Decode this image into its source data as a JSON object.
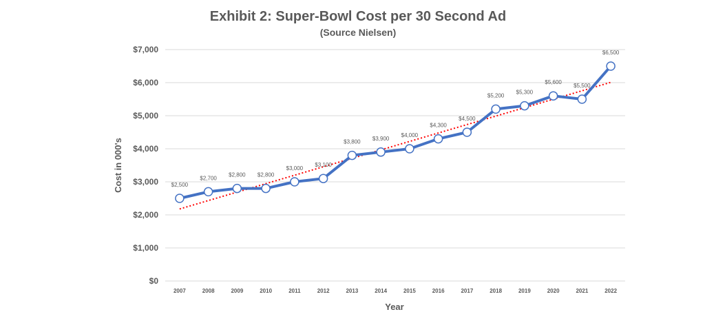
{
  "chart_data": {
    "type": "line",
    "title": "Exhibit 2:  Super-Bowl Cost per 30 Second Ad",
    "subtitle": "(Source Nielsen)",
    "xlabel": "Year",
    "ylabel": "Cost in 000's",
    "ylim": [
      0,
      7000
    ],
    "yticks": [
      {
        "value": 0,
        "label": "$0"
      },
      {
        "value": 1000,
        "label": "$1,000"
      },
      {
        "value": 2000,
        "label": "$2,000"
      },
      {
        "value": 3000,
        "label": "$3,000"
      },
      {
        "value": 4000,
        "label": "$4,000"
      },
      {
        "value": 5000,
        "label": "$5,000"
      },
      {
        "value": 6000,
        "label": "$6,000"
      },
      {
        "value": 7000,
        "label": "$7,000"
      }
    ],
    "categories": [
      "2007",
      "2008",
      "2009",
      "2010",
      "2011",
      "2012",
      "2013",
      "2014",
      "2015",
      "2016",
      "2017",
      "2018",
      "2019",
      "2020",
      "2021",
      "2022"
    ],
    "values": [
      2500,
      2700,
      2800,
      2800,
      3000,
      3100,
      3800,
      3900,
      4000,
      4300,
      4500,
      5200,
      5300,
      5600,
      5500,
      6500
    ],
    "data_labels": [
      "$2,500",
      "$2,700",
      "$2,800",
      "$2,800",
      "$3,000",
      "$3,100",
      "$3,800",
      "$3,900",
      "$4,000",
      "$4,300",
      "$4,500",
      "$5,200",
      "$5,300",
      "$5,600",
      "$5,500",
      "$6,500"
    ],
    "trendline": {
      "type": "linear",
      "style": "dotted"
    },
    "grid": true,
    "legend": false,
    "colors": {
      "line": "#4472c4",
      "marker_fill": "#ffffff",
      "trend": "#ff0000",
      "grid": "#d9d9d9",
      "text": "#595959"
    }
  }
}
